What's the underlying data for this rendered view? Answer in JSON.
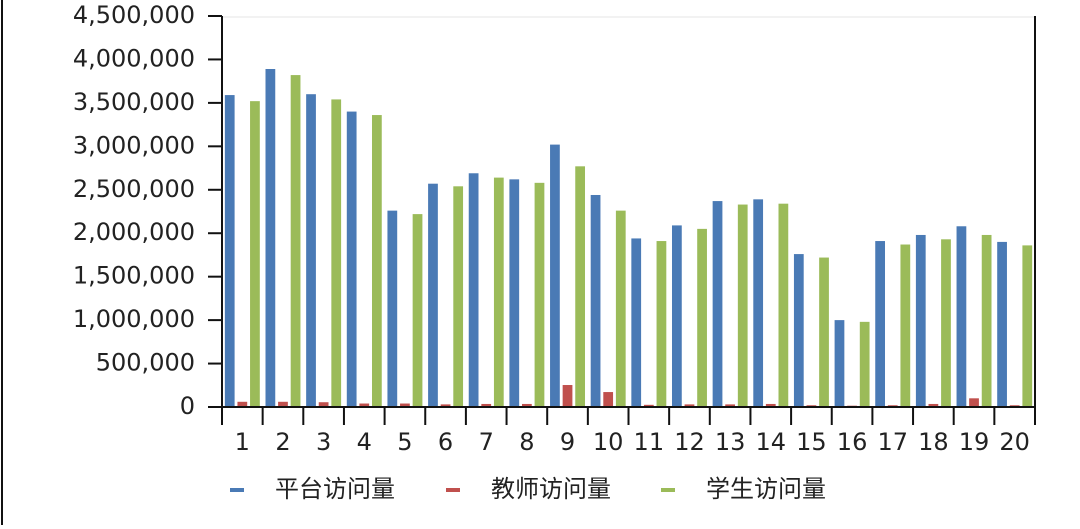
{
  "chart_data": {
    "type": "bar",
    "categories": [
      "1",
      "2",
      "3",
      "4",
      "5",
      "6",
      "7",
      "8",
      "9",
      "10",
      "11",
      "12",
      "13",
      "14",
      "15",
      "16",
      "17",
      "18",
      "19",
      "20"
    ],
    "series": [
      {
        "name": "平台访问量",
        "color": "#4a7ab5",
        "values": [
          3590000,
          3890000,
          3600000,
          3400000,
          2260000,
          2570000,
          2690000,
          2620000,
          3020000,
          2440000,
          1940000,
          2090000,
          2370000,
          2390000,
          1760000,
          1000000,
          1910000,
          1980000,
          2080000,
          1900000
        ]
      },
      {
        "name": "教师访问量",
        "color": "#c0504d",
        "values": [
          60000,
          60000,
          55000,
          40000,
          40000,
          30000,
          35000,
          35000,
          253000,
          172000,
          25000,
          30000,
          30000,
          35000,
          20000,
          15000,
          20000,
          35000,
          100000,
          20000
        ]
      },
      {
        "name": "学生访问量",
        "color": "#9bbb59",
        "values": [
          3520000,
          3820000,
          3540000,
          3360000,
          2220000,
          2540000,
          2640000,
          2580000,
          2770000,
          2260000,
          1910000,
          2050000,
          2330000,
          2340000,
          1720000,
          980000,
          1870000,
          1930000,
          1980000,
          1860000
        ]
      }
    ],
    "ylim": [
      0,
      4500000
    ],
    "yticks": [
      {
        "value": 0,
        "label": "0"
      },
      {
        "value": 500000,
        "label": "500,000"
      },
      {
        "value": 1000000,
        "label": "1,000,000"
      },
      {
        "value": 1500000,
        "label": "1,500,000"
      },
      {
        "value": 2000000,
        "label": "2,000,000"
      },
      {
        "value": 2500000,
        "label": "2,500,000"
      },
      {
        "value": 3000000,
        "label": "3,000,000"
      },
      {
        "value": 3500000,
        "label": "3,500,000"
      },
      {
        "value": 4000000,
        "label": "4,000,000"
      },
      {
        "value": 4500000,
        "label": "4,500,000"
      }
    ],
    "legend": "bottom"
  }
}
